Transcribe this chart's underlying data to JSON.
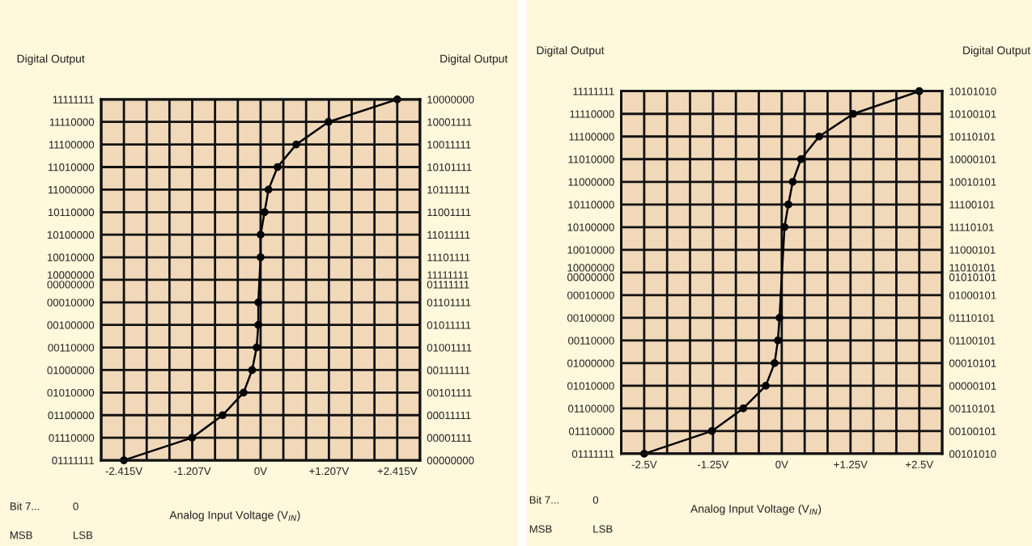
{
  "chart_data": [
    {
      "type": "line",
      "orientation": "horizontal",
      "xlabel": "Analog Input Voltage (V$_{IN}$)",
      "ylabel": "Digital Output",
      "y2label": "Digital Output",
      "annotations": [
        "Bit 7...",
        "0",
        "MSB",
        "LSB"
      ],
      "categories": [
        "11111111",
        "11110000",
        "11100000",
        "11010000",
        "11000000",
        "10110000",
        "10100000",
        "10010000",
        "10000000\n00000000",
        "00010000",
        "00100000",
        "00110000",
        "01000000",
        "01010000",
        "01100000",
        "01110000",
        "01111111"
      ],
      "y2_categories": [
        "10000000",
        "10001111",
        "10011111",
        "10101111",
        "10111111",
        "11001111",
        "11011111",
        "11101111",
        "11111111\n01111111",
        "01101111",
        "01011111",
        "01001111",
        "00111111",
        "00101111",
        "00011111",
        "00001111",
        "00000000"
      ],
      "values": [
        2.415,
        1.2,
        0.63,
        0.3,
        0.14,
        0.07,
        0,
        0,
        null,
        -0.04,
        -0.04,
        -0.07,
        -0.15,
        -0.3,
        -0.67,
        -1.21,
        -2.415
      ],
      "color": "#000000",
      "marker": "circle",
      "line_style": "solid",
      "grid": true,
      "xlim": [
        -2.8175,
        2.8175
      ],
      "xticks": [
        {
          "value": -2.8175,
          "label": null
        },
        {
          "value": -2.415,
          "label": "-2.415V"
        },
        {
          "value": -2.0125,
          "label": null
        },
        {
          "value": -1.61,
          "label": null
        },
        {
          "value": -1.2075,
          "label": "-1.207V"
        },
        {
          "value": -0.805,
          "label": null
        },
        {
          "value": -0.4025,
          "label": null
        },
        {
          "value": 0,
          "label": "0V"
        },
        {
          "value": 0.4025,
          "label": null
        },
        {
          "value": 0.805,
          "label": null
        },
        {
          "value": 1.2075,
          "label": "+1.207V"
        },
        {
          "value": 1.61,
          "label": null
        },
        {
          "value": 2.0125,
          "label": null
        },
        {
          "value": 2.415,
          "label": "+2.415V"
        },
        {
          "value": 2.8175,
          "label": null
        }
      ]
    },
    {
      "type": "line",
      "orientation": "horizontal",
      "xlabel": "Analog Input Voltage (V$_{IN}$)",
      "ylabel": "Digital Output",
      "y2label": "Digital Output",
      "annotations": [
        "Bit 7...",
        "0",
        "MSB",
        "LSB"
      ],
      "categories": [
        "11111111",
        "11110000",
        "11100000",
        "11010000",
        "11000000",
        "10110000",
        "10100000",
        "10010000",
        "10000000\n00000000",
        "00010000",
        "00100000",
        "00110000",
        "01000000",
        "01010000",
        "01100000",
        "01110000",
        "01111111"
      ],
      "y2_categories": [
        "10101010",
        "10100101",
        "10110101",
        "10000101",
        "10010101",
        "11100101",
        "11110101",
        "11000101",
        "11010101\n01010101",
        "01000101",
        "01110101",
        "01100101",
        "00010101",
        "00000101",
        "00110101",
        "00100101",
        "00101010"
      ],
      "values": [
        2.5,
        1.3,
        0.68,
        0.35,
        0.2,
        0.12,
        0.05,
        null,
        null,
        null,
        -0.04,
        -0.07,
        -0.13,
        -0.29,
        -0.7,
        -1.27,
        -2.5
      ],
      "color": "#000000",
      "marker": "circle",
      "line_style": "solid",
      "grid": true,
      "xlim": [
        -2.9167,
        2.9167
      ],
      "xticks": [
        {
          "value": -2.9167,
          "label": null
        },
        {
          "value": -2.5,
          "label": "-2.5V"
        },
        {
          "value": -2.0833,
          "label": null
        },
        {
          "value": -1.6667,
          "label": null
        },
        {
          "value": -1.25,
          "label": "-1.25V"
        },
        {
          "value": -0.8333,
          "label": null
        },
        {
          "value": -0.4167,
          "label": null
        },
        {
          "value": 0,
          "label": "0V"
        },
        {
          "value": 0.4167,
          "label": null
        },
        {
          "value": 0.8333,
          "label": null
        },
        {
          "value": 1.25,
          "label": "+1.25V"
        },
        {
          "value": 1.6667,
          "label": null
        },
        {
          "value": 2.0833,
          "label": null
        },
        {
          "value": 2.5,
          "label": "+2.5V"
        },
        {
          "value": 2.9167,
          "label": null
        }
      ]
    }
  ]
}
